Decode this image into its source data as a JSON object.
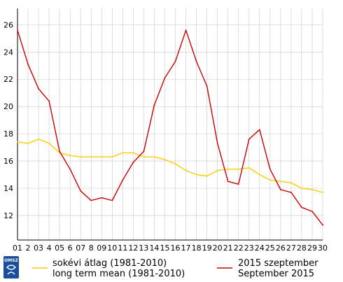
{
  "chart_data": {
    "type": "line",
    "x": [
      1,
      2,
      3,
      4,
      5,
      6,
      7,
      8,
      9,
      10,
      11,
      12,
      13,
      14,
      15,
      16,
      17,
      18,
      19,
      20,
      21,
      22,
      23,
      24,
      25,
      26,
      27,
      28,
      29,
      30
    ],
    "x_tick_labels": [
      "01",
      "03",
      "05",
      "07",
      "09",
      "11",
      "13",
      "15",
      "17",
      "19",
      "21",
      "23",
      "25",
      "27",
      "29"
    ],
    "x_minor_labels": [
      "2",
      "4",
      "6",
      "8",
      "10",
      "12",
      "14",
      "16",
      "18",
      "20",
      "22",
      "24",
      "26",
      "28",
      "30"
    ],
    "ylim": [
      10.2,
      27.2
    ],
    "y_ticks": [
      12,
      14,
      16,
      18,
      20,
      22,
      24,
      26
    ],
    "grid": true,
    "series": [
      {
        "name": "sokévi átlag (1981-2010)",
        "name_en": "long term mean (1981-2010)",
        "color": "#ffcc00",
        "values": [
          17.4,
          17.3,
          17.6,
          17.3,
          16.6,
          16.4,
          16.3,
          16.3,
          16.3,
          16.3,
          16.6,
          16.6,
          16.3,
          16.3,
          16.1,
          15.8,
          15.3,
          15.0,
          14.9,
          15.3,
          15.4,
          15.4,
          15.5,
          15.0,
          14.6,
          14.5,
          14.4,
          14.0,
          13.9,
          13.7
        ]
      },
      {
        "name": "2015 szeptember",
        "name_en": "September 2015",
        "color": "#cc0000",
        "values": [
          25.6,
          23.1,
          21.3,
          20.4,
          16.7,
          15.4,
          13.8,
          13.1,
          13.3,
          13.1,
          14.6,
          15.9,
          16.7,
          20.1,
          22.1,
          23.3,
          25.6,
          23.3,
          21.5,
          17.3,
          14.5,
          14.3,
          17.6,
          18.3,
          15.4,
          13.9,
          13.7,
          12.6,
          12.3,
          11.3
        ]
      }
    ]
  },
  "logo": {
    "text": "OMSZ",
    "color": "#1a4f9e"
  }
}
